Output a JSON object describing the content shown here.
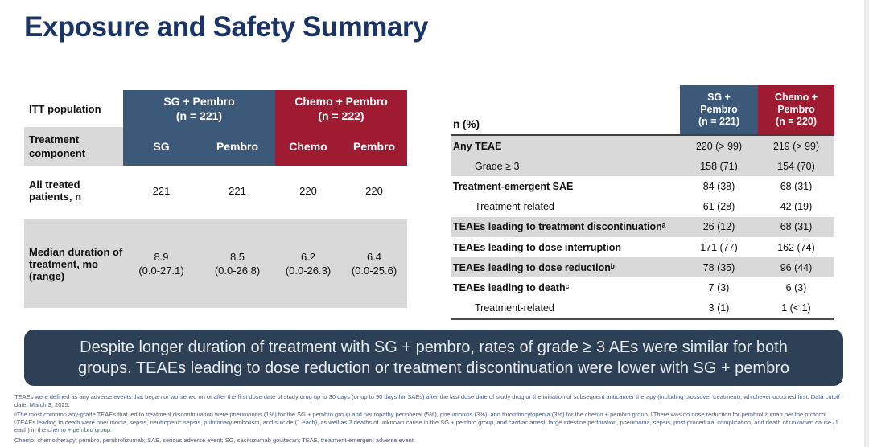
{
  "slide": {
    "title": "Exposure and Safety Summary"
  },
  "colors": {
    "title_navy": "#1B3566",
    "blue_header": "#3D5979",
    "red_header": "#9E1B31",
    "gray_row": "#D9D9D9",
    "callout_bg": "#2D4055",
    "callout_text": "#E7EAEE",
    "footnote_text": "#44597C"
  },
  "left_table": {
    "corner_label": "ITT population",
    "group_headers": [
      {
        "label": "SG + Pembro\n(n = 221)"
      },
      {
        "label": "Chemo + Pembro\n(n = 222)"
      }
    ],
    "component_row_label": "Treatment\ncomponent",
    "component_headers": [
      "SG",
      "Pembro",
      "Chemo",
      "Pembro"
    ],
    "rows": [
      {
        "label": "All treated patients, n",
        "values": [
          "221",
          "221",
          "220",
          "220"
        ],
        "shaded": false
      },
      {
        "label": "Median duration of treatment, mo (range)",
        "values": [
          "8.9\n(0.0-27.1)",
          "8.5\n(0.0-26.8)",
          "6.2\n(0.0-26.3)",
          "6.4\n(0.0-25.6)"
        ],
        "shaded": true
      }
    ]
  },
  "right_table": {
    "header_label": "n (%)",
    "group_headers": [
      {
        "label": "SG +\nPembro\n(n = 221)"
      },
      {
        "label": "Chemo +\nPembro\n(n = 220)"
      }
    ],
    "rows": [
      {
        "label": "Any TEAE",
        "bold": true,
        "indent": false,
        "shaded": true,
        "values": [
          "220 (> 99)",
          "219 (> 99)"
        ]
      },
      {
        "label": "Grade ≥ 3",
        "bold": false,
        "indent": true,
        "shaded": true,
        "values": [
          "158 (71)",
          "154 (70)"
        ]
      },
      {
        "label": "Treatment-emergent SAE",
        "bold": true,
        "indent": false,
        "shaded": false,
        "values": [
          "84 (38)",
          "68 (31)"
        ]
      },
      {
        "label": "Treatment-related",
        "bold": false,
        "indent": true,
        "shaded": false,
        "values": [
          "61 (28)",
          "42 (19)"
        ]
      },
      {
        "label": "TEAEs leading to treatment discontinuationᵃ",
        "bold": true,
        "indent": false,
        "shaded": true,
        "values": [
          "26 (12)",
          "68 (31)"
        ]
      },
      {
        "label": "TEAEs leading to dose interruption",
        "bold": true,
        "indent": false,
        "shaded": false,
        "values": [
          "171 (77)",
          "162 (74)"
        ]
      },
      {
        "label": "TEAEs leading to dose reductionᵇ",
        "bold": true,
        "indent": false,
        "shaded": true,
        "values": [
          "78 (35)",
          "96 (44)"
        ]
      },
      {
        "label": "TEAEs leading to deathᶜ",
        "bold": true,
        "indent": false,
        "shaded": false,
        "values": [
          "7 (3)",
          "6 (3)"
        ]
      },
      {
        "label": "Treatment-related",
        "bold": false,
        "indent": true,
        "shaded": false,
        "values": [
          "3 (1)",
          "1 (< 1)"
        ]
      }
    ]
  },
  "callout": {
    "text": "Despite longer duration of treatment with SG + pembro, rates of grade ≥ 3 AEs were similar for both groups. TEAEs leading to dose reduction or treatment discontinuation were lower with SG + pembro"
  },
  "footnotes": [
    "TEAEs were defined as any adverse events that began or worsened on or after the first dose date of study drug up to 30 days (or up to 90 days for SAEs) after the last dose date of study drug or the initiation of subsequent anticancer therapy (including crossover treatment), whichever occurred first. Data cutoff date: March 3, 2025.",
    "ᵃThe most common any-grade TEAEs that led to treatment discontinuation were pneumonitis (1%) for the SG + pembro group and neuropathy peripheral (5%), pneumonitis (3%), and thrombocytopenia (3%) for the chemo + pembro group. ᵇThere was no dose reduction for pembrolizumab per the protocol. ᶜTEAEs leading to death were pneumonia, sepsis, neutropenic sepsis, pulmonary embolism, and suicide (1 each), as well as 2 deaths of unknown cause in the SG + pembro group, and cardiac arrest, large intestine perforation, pneumonia, sepsis, post-procedural complication, and death of unknown cause (1 each) in the chemo + pembro group.",
    "Chemo, chemotherapy; pembro, pembrolizumab; SAE, serious adverse event; SG, sacituzumab govitecan; TEAE, treatment-emergent adverse event."
  ]
}
